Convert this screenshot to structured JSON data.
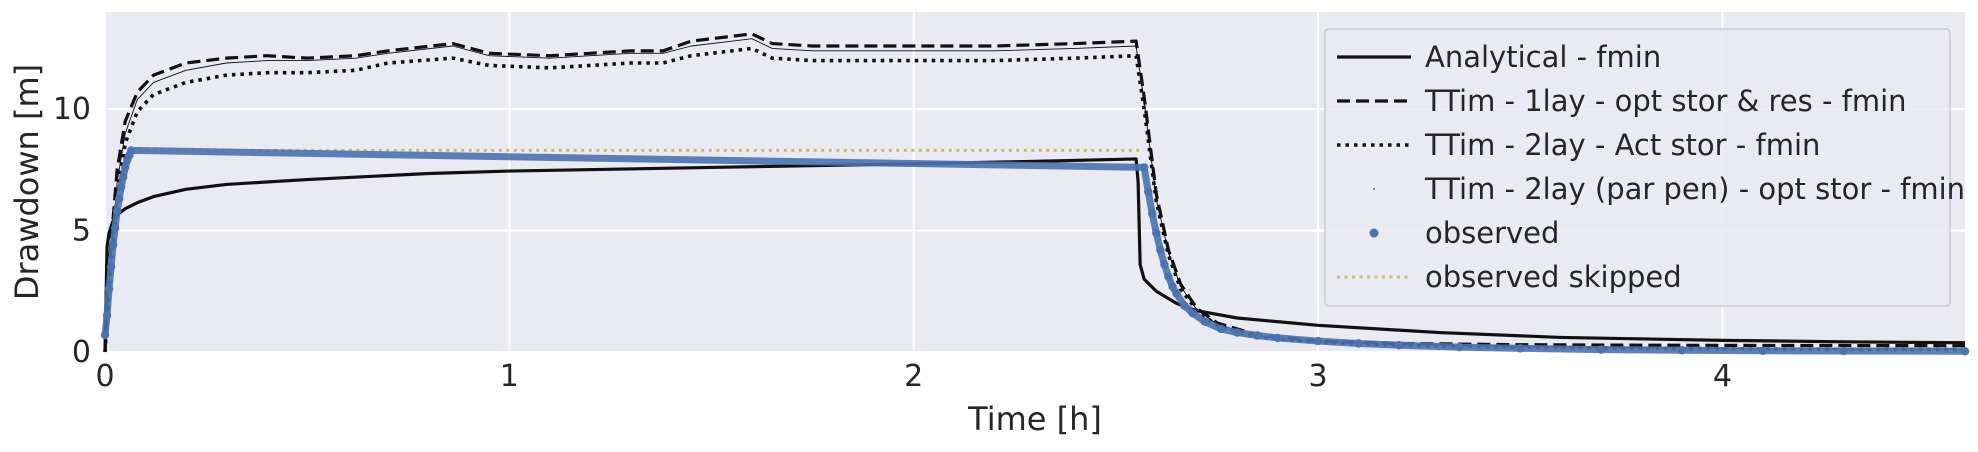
{
  "chart_data": {
    "type": "line",
    "title": "",
    "xlabel": "Time [h]",
    "ylabel": "Drawdown [m]",
    "xlim": [
      0,
      4.6
    ],
    "ylim": [
      0,
      14
    ],
    "xticks": [
      0,
      1,
      2,
      3,
      4
    ],
    "yticks": [
      0,
      5,
      10
    ],
    "grid": true,
    "legend_position": "top-right",
    "colors": {
      "background": "#eaeaf2",
      "grid": "#ffffff",
      "black": "#111111",
      "observed": "#4c72b0",
      "skipped": "#ccb974"
    },
    "series": [
      {
        "name": "Analytical - fmin",
        "style": "solid",
        "x": [
          0.0,
          0.005,
          0.01,
          0.02,
          0.03,
          0.05,
          0.08,
          0.12,
          0.2,
          0.3,
          0.5,
          0.8,
          1.0,
          1.5,
          2.0,
          2.3,
          2.55,
          2.555,
          2.56,
          2.57,
          2.6,
          2.65,
          2.7,
          2.8,
          3.0,
          3.3,
          3.6,
          4.0,
          4.3,
          4.6
        ],
        "y": [
          0.0,
          4.3,
          4.9,
          5.4,
          5.65,
          5.9,
          6.15,
          6.4,
          6.7,
          6.9,
          7.1,
          7.35,
          7.45,
          7.6,
          7.75,
          7.85,
          7.95,
          7.0,
          3.6,
          3.0,
          2.5,
          2.0,
          1.7,
          1.4,
          1.1,
          0.8,
          0.6,
          0.48,
          0.42,
          0.38
        ]
      },
      {
        "name": "TTim - 1lay - opt stor & res - fmin",
        "style": "dashed",
        "x": [
          0.0,
          0.01,
          0.03,
          0.05,
          0.08,
          0.12,
          0.2,
          0.3,
          0.4,
          0.5,
          0.62,
          0.7,
          0.86,
          0.95,
          1.1,
          1.2,
          1.3,
          1.38,
          1.45,
          1.55,
          1.6,
          1.65,
          1.75,
          2.0,
          2.2,
          2.4,
          2.55,
          2.57,
          2.6,
          2.63,
          2.66,
          2.7,
          2.75,
          2.85,
          3.0,
          3.2,
          3.5,
          3.8,
          4.1,
          4.6
        ],
        "y": [
          0.0,
          3.5,
          7.5,
          9.5,
          10.7,
          11.4,
          11.9,
          12.1,
          12.2,
          12.1,
          12.2,
          12.4,
          12.7,
          12.3,
          12.2,
          12.3,
          12.4,
          12.4,
          12.8,
          13.0,
          13.1,
          12.7,
          12.6,
          12.6,
          12.6,
          12.7,
          12.8,
          10.5,
          6.5,
          4.2,
          2.8,
          1.8,
          1.2,
          0.7,
          0.45,
          0.35,
          0.3,
          0.28,
          0.27,
          0.26
        ]
      },
      {
        "name": "TTim - 2lay - Act stor - fmin",
        "style": "dotted",
        "x": [
          0.0,
          0.01,
          0.03,
          0.05,
          0.08,
          0.12,
          0.2,
          0.3,
          0.4,
          0.5,
          0.62,
          0.7,
          0.86,
          0.95,
          1.1,
          1.2,
          1.3,
          1.38,
          1.45,
          1.55,
          1.6,
          1.65,
          1.75,
          2.0,
          2.2,
          2.4,
          2.55,
          2.57,
          2.6,
          2.63,
          2.66,
          2.7,
          2.75,
          2.85,
          3.0,
          3.2,
          3.5,
          3.8,
          4.1,
          4.6
        ],
        "y": [
          0.0,
          2.5,
          6.5,
          8.6,
          9.9,
          10.6,
          11.1,
          11.4,
          11.5,
          11.5,
          11.6,
          11.9,
          12.1,
          11.8,
          11.7,
          11.8,
          11.9,
          11.9,
          12.2,
          12.4,
          12.5,
          12.1,
          12.0,
          12.0,
          12.0,
          12.1,
          12.2,
          10.0,
          6.2,
          4.0,
          2.6,
          1.7,
          1.1,
          0.6,
          0.4,
          0.28,
          0.2,
          0.15,
          0.12,
          0.1
        ]
      },
      {
        "name": "TTim - 2lay (par pen) - opt stor - fmin",
        "style": "fine",
        "x": [
          0.0,
          0.01,
          0.03,
          0.05,
          0.08,
          0.12,
          0.2,
          0.3,
          0.4,
          0.5,
          0.62,
          0.7,
          0.86,
          0.95,
          1.1,
          1.2,
          1.3,
          1.38,
          1.45,
          1.55,
          1.6,
          1.65,
          1.75,
          2.0,
          2.2,
          2.4,
          2.55,
          2.57,
          2.6,
          2.63,
          2.66,
          2.7,
          2.75,
          2.85,
          3.0,
          3.2,
          3.5,
          3.8,
          4.1,
          4.6
        ],
        "y": [
          0.0,
          2.8,
          7.0,
          9.0,
          10.4,
          11.1,
          11.6,
          11.9,
          12.0,
          12.0,
          12.1,
          12.3,
          12.6,
          12.2,
          12.1,
          12.2,
          12.3,
          12.3,
          12.6,
          12.8,
          12.9,
          12.5,
          12.4,
          12.4,
          12.4,
          12.5,
          12.6,
          10.3,
          6.3,
          4.1,
          2.7,
          1.75,
          1.15,
          0.65,
          0.42,
          0.3,
          0.22,
          0.17,
          0.14,
          0.12
        ]
      },
      {
        "name": "observed",
        "style": "markers",
        "x": [
          0.0,
          0.005,
          0.01,
          0.015,
          0.02,
          0.025,
          0.03,
          0.035,
          0.04,
          0.045,
          0.05,
          0.055,
          0.06,
          0.065,
          2.57,
          2.58,
          2.59,
          2.6,
          2.61,
          2.62,
          2.63,
          2.64,
          2.65,
          2.67,
          2.69,
          2.72,
          2.76,
          2.8,
          2.85,
          2.9,
          3.0,
          3.1,
          3.2,
          3.35,
          3.5,
          3.7,
          3.9,
          4.1,
          4.3,
          4.6
        ],
        "y": [
          0.7,
          1.5,
          2.6,
          3.5,
          4.4,
          5.1,
          5.8,
          6.3,
          6.8,
          7.2,
          7.6,
          7.9,
          8.1,
          8.3,
          7.6,
          6.6,
          5.7,
          4.9,
          4.2,
          3.6,
          3.1,
          2.7,
          2.4,
          1.9,
          1.6,
          1.25,
          0.95,
          0.8,
          0.68,
          0.58,
          0.45,
          0.35,
          0.28,
          0.2,
          0.15,
          0.1,
          0.07,
          0.05,
          0.04,
          0.03
        ]
      },
      {
        "name": "observed skipped",
        "style": "dotted-thin",
        "x": [
          0.065,
          2.57
        ],
        "y": [
          8.3,
          8.3
        ]
      }
    ]
  }
}
